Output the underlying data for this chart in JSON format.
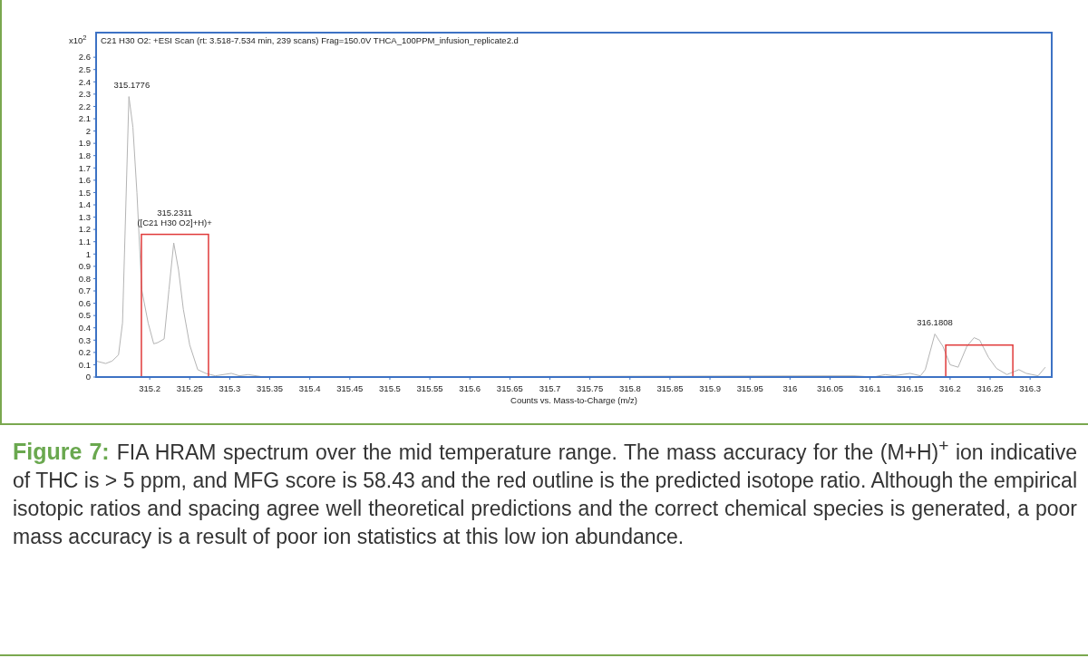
{
  "chart_data": {
    "type": "line",
    "title": "C21 H30 O2: +ESI Scan (rt: 3.518-7.534 min, 239 scans) Frag=150.0V THCA_100PPM_infusion_replicate2.d",
    "xlabel": "Counts vs. Mass-to-Charge (m/z)",
    "ylabel": "x10$^{2}$",
    "xlim": [
      315.133,
      316.327
    ],
    "ylim": [
      0,
      2.8
    ],
    "xticks": [
      315.2,
      315.25,
      315.3,
      315.35,
      315.4,
      315.45,
      315.5,
      315.55,
      315.6,
      315.65,
      315.7,
      315.75,
      315.8,
      315.85,
      315.9,
      315.95,
      316,
      316.05,
      316.1,
      316.15,
      316.2,
      316.25,
      316.3
    ],
    "yticks": [
      0,
      0.1,
      0.2,
      0.3,
      0.4,
      0.5,
      0.6,
      0.7,
      0.8,
      0.9,
      1,
      1.1,
      1.2,
      1.3,
      1.4,
      1.5,
      1.6,
      1.7,
      1.8,
      1.9,
      2,
      2.1,
      2.2,
      2.3,
      2.4,
      2.5,
      2.6
    ],
    "grid": false,
    "series": [
      {
        "color": "#b4b4b4",
        "x": [
          315.133,
          315.145,
          315.153,
          315.161,
          315.166,
          315.174,
          315.179,
          315.184,
          315.19,
          315.198,
          315.205,
          315.21,
          315.218,
          315.224,
          315.23,
          315.236,
          315.242,
          315.25,
          315.26,
          315.27,
          315.282,
          315.302,
          315.312,
          315.323,
          315.343,
          316.08,
          316.104,
          316.119,
          316.13,
          316.15,
          316.163,
          316.169,
          316.181,
          316.191,
          316.2,
          316.21,
          316.221,
          316.23,
          316.237,
          316.248,
          316.258,
          316.271,
          316.286,
          316.295,
          316.31,
          316.319
        ],
        "values": [
          0.13,
          0.11,
          0.13,
          0.18,
          0.44,
          2.28,
          2.03,
          1.5,
          0.71,
          0.44,
          0.27,
          0.28,
          0.31,
          0.71,
          1.09,
          0.87,
          0.55,
          0.26,
          0.06,
          0.03,
          0.01,
          0.03,
          0.01,
          0.02,
          0,
          0.01,
          0,
          0.02,
          0.01,
          0.03,
          0.01,
          0.06,
          0.35,
          0.25,
          0.1,
          0.08,
          0.25,
          0.32,
          0.3,
          0.16,
          0.07,
          0.02,
          0.06,
          0.03,
          0.01,
          0.08
        ]
      },
      {
        "type": "bar",
        "color": "#e03a3a",
        "x": [
          315.2315,
          316.2365
        ],
        "values": [
          1.16,
          0.26
        ]
      }
    ],
    "annotations": [
      {
        "text": "315.1776",
        "x": 315.1776,
        "y": 2.28
      },
      {
        "text": "315.2311\n([C21 H30 O2]+H)+",
        "x": 315.2311,
        "y": 1.16
      },
      {
        "text": "316.1808",
        "x": 316.1808,
        "y": 0.35
      },
      "Figure 7:",
      "FIA HRAM spectrum over the mid temperature range. The mass accuracy for the (M+H)$^{+}$ ion indicative of THC is > 5 ppm, and MFG score is 58.43 and the red outline is the predicted isotope ratio. Although the empirical isotopic ratios and spacing agree well theoretical predictions and the correct chemical species is generated, a poor mass accuracy is a result of poor ion statistics at this low ion abundance."
    ]
  }
}
